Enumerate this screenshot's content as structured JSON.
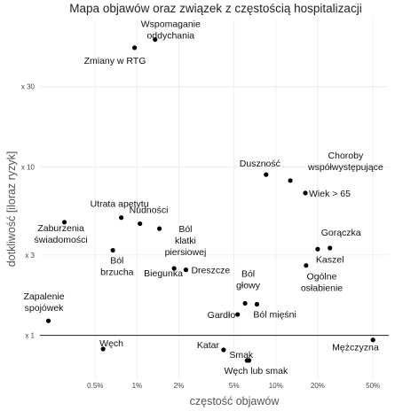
{
  "chart_data": {
    "type": "scatter",
    "title": "Mapa objawów oraz związek z częstością hospitalizacji",
    "xlabel": "częstość objawów",
    "ylabel": "dotkliwość [iloraz ryzyk]",
    "x_scale": "log",
    "y_scale": "log",
    "xlim": [
      0.002,
      0.65
    ],
    "ylim": [
      0.55,
      75
    ],
    "x_ticks": [
      {
        "value": 0.005,
        "label": "0.5%"
      },
      {
        "value": 0.01,
        "label": "1%"
      },
      {
        "value": 0.02,
        "label": "2%"
      },
      {
        "value": 0.05,
        "label": "5%"
      },
      {
        "value": 0.1,
        "label": "10%"
      },
      {
        "value": 0.2,
        "label": "20%"
      },
      {
        "value": 0.5,
        "label": "50%"
      }
    ],
    "y_ticks": [
      {
        "value": 1,
        "label": "x 1"
      },
      {
        "value": 3,
        "label": "x 3"
      },
      {
        "value": 10,
        "label": "x 10"
      },
      {
        "value": 30,
        "label": "x 30"
      }
    ],
    "reference_line_y": 1,
    "points": [
      {
        "label": "Wspomaganie\noddychania",
        "x": 0.0135,
        "y": 57
      },
      {
        "label": "Zmiany w RTG",
        "x": 0.0096,
        "y": 51
      },
      {
        "label": "Duszność",
        "x": 0.085,
        "y": 9.0
      },
      {
        "label": "Choroby\nwspółwystępujące",
        "x": 0.127,
        "y": 8.3
      },
      {
        "label": "Wiek > 65",
        "x": 0.163,
        "y": 7.0
      },
      {
        "label": "Utrata apetytu",
        "x": 0.0077,
        "y": 5.0
      },
      {
        "label": "Nudności",
        "x": 0.0105,
        "y": 4.6
      },
      {
        "label": "Ból\nklatki\npiersiowej",
        "x": 0.0145,
        "y": 4.3
      },
      {
        "label": "Zaburzenia\nświadomości",
        "x": 0.003,
        "y": 4.7
      },
      {
        "label": "Ból\nbrzucha",
        "x": 0.0067,
        "y": 3.2
      },
      {
        "label": "Biegunka",
        "x": 0.0185,
        "y": 2.5
      },
      {
        "label": "Dreszcze",
        "x": 0.0225,
        "y": 2.45
      },
      {
        "label": "Gorączka",
        "x": 0.245,
        "y": 3.3
      },
      {
        "label": "Kaszel",
        "x": 0.2,
        "y": 3.25
      },
      {
        "label": "Ogólne\nosłabienie",
        "x": 0.165,
        "y": 2.6
      },
      {
        "label": "Zapalenie\nspojówek",
        "x": 0.0023,
        "y": 1.22
      },
      {
        "label": "Ból\ngłowy",
        "x": 0.06,
        "y": 1.55
      },
      {
        "label": "Ból mięśni",
        "x": 0.073,
        "y": 1.53
      },
      {
        "label": "Gardło",
        "x": 0.053,
        "y": 1.33
      },
      {
        "label": "Mężczyzna",
        "x": 0.5,
        "y": 0.94
      },
      {
        "label": "Katar",
        "x": 0.042,
        "y": 0.82
      },
      {
        "label": "Smak",
        "x": 0.062,
        "y": 0.71
      },
      {
        "label": "Węch lub smak",
        "x": 0.064,
        "y": 0.71
      },
      {
        "label": "Węch",
        "x": 0.0057,
        "y": 0.83
      }
    ]
  }
}
